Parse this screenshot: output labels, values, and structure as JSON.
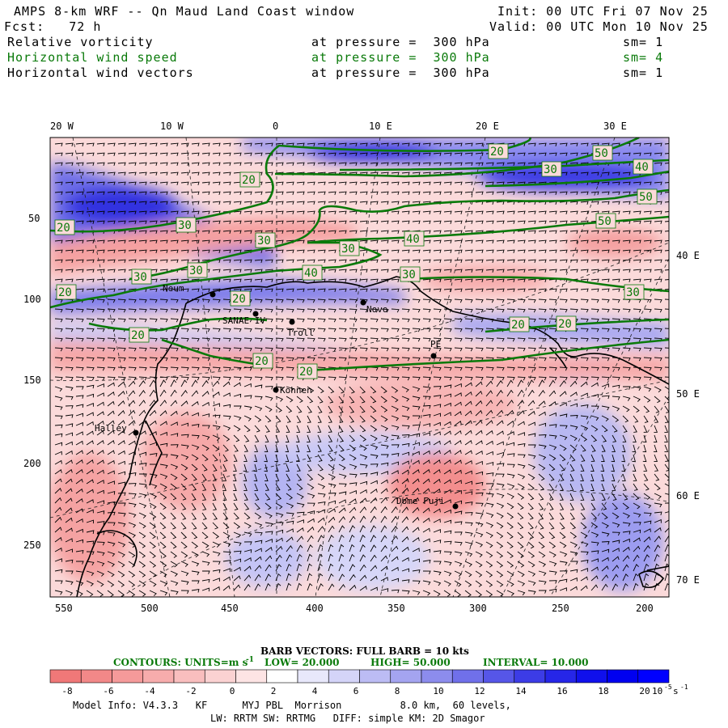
{
  "header": {
    "title": "AMPS 8-km WRF -- Qn Maud Land Coast window",
    "init": "Init: 00 UTC Fri 07 Nov 25",
    "fcst": "Fcst:   72 h",
    "valid": "Valid: 00 UTC Mon 10 Nov 25",
    "fields": [
      {
        "name": "Relative vorticity",
        "level": "at pressure =  300 hPa",
        "sm": "sm= 1",
        "color": "#000000"
      },
      {
        "name": "Horizontal wind speed",
        "level": "at pressure =  300 hPa",
        "sm": "sm= 4",
        "color": "#0a7a0a"
      },
      {
        "name": "Horizontal wind vectors",
        "level": "at pressure =  300 hPa",
        "sm": "sm= 1",
        "color": "#000000"
      }
    ]
  },
  "map": {
    "lon_labels_top": [
      "20 W",
      "10 W",
      "0",
      "10 E",
      "20 E",
      "30 E"
    ],
    "lon_labels_right": [
      "40 E",
      "50 E",
      "60 E",
      "70 E"
    ],
    "y_ticks": [
      "50",
      "100",
      "150",
      "200",
      "250"
    ],
    "x_ticks": [
      "550",
      "500",
      "450",
      "400",
      "350",
      "300",
      "250",
      "200"
    ],
    "stations": [
      "Neum",
      "SANAE IV",
      "Troll",
      "Novo",
      "PE",
      "Kohnen",
      "Halley",
      "Dome Fuji"
    ],
    "contour_labels": [
      "20",
      "30",
      "40",
      "50"
    ]
  },
  "captions": {
    "barb": "BARB VECTORS:  FULL BARB = 10 kts",
    "contours_label": "CONTOURS:  UNITS=m s",
    "contours_exp": "-1",
    "low": "LOW=  20.000",
    "high": "HIGH=  50.000",
    "interval": "INTERVAL=   10.000"
  },
  "colorbar": {
    "ticks": [
      "-8",
      "-6",
      "-4",
      "-2",
      "0",
      "2",
      "4",
      "6",
      "8",
      "10",
      "12",
      "14",
      "16",
      "18",
      "20"
    ],
    "unit_base": "10",
    "unit_exp": "-5",
    "unit_suffix": "s",
    "unit_suffix_exp": "-1",
    "colors": [
      "#f07878",
      "#f28888",
      "#f59a9a",
      "#f7acac",
      "#f9bebe",
      "#fbd2d2",
      "#fde4e4",
      "#ffffff",
      "#e8e8fb",
      "#d4d4f8",
      "#bcbcf4",
      "#a4a4f0",
      "#8c8ced",
      "#7070ea",
      "#5656e8",
      "#3c3ce6",
      "#2626e8",
      "#1010ec",
      "#0000f0",
      "#0000ff"
    ]
  },
  "footer": {
    "line1": "Model Info: V4.3.3   KF      MYJ PBL  Morrison          8.0 km,  60 levels,",
    "line2": "LW: RRTM SW: RRTMG   DIFF: simple KM: 2D Smagor"
  }
}
